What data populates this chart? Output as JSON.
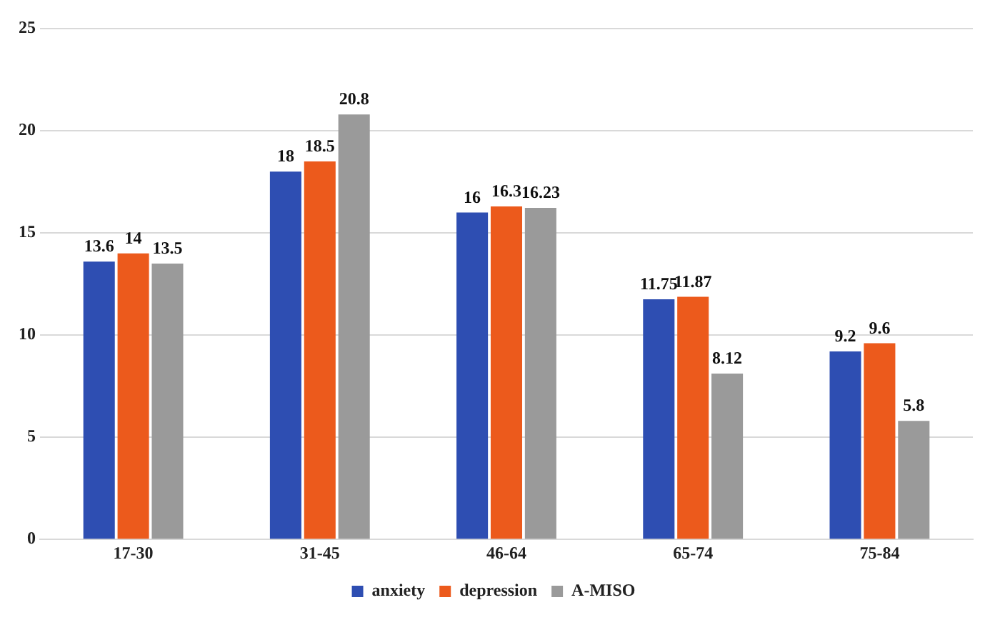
{
  "chart_data": {
    "type": "bar",
    "categories": [
      "17-30",
      "31-45",
      "46-64",
      "65-74",
      "75-84"
    ],
    "series": [
      {
        "name": "anxiety",
        "color": "#2e4eb2",
        "values": [
          13.6,
          18,
          16,
          11.75,
          9.2
        ]
      },
      {
        "name": "depression",
        "color": "#ec5a1c",
        "values": [
          14,
          18.5,
          16.3,
          11.87,
          9.6
        ]
      },
      {
        "name": "A-MISO",
        "color": "#9a9a9a",
        "values": [
          13.5,
          20.8,
          16.23,
          8.12,
          5.8
        ]
      }
    ],
    "ylim": [
      0,
      25
    ],
    "yticks": [
      0,
      5,
      10,
      15,
      20,
      25
    ],
    "grid": "y",
    "legend": "bottom",
    "data_labels": true
  }
}
